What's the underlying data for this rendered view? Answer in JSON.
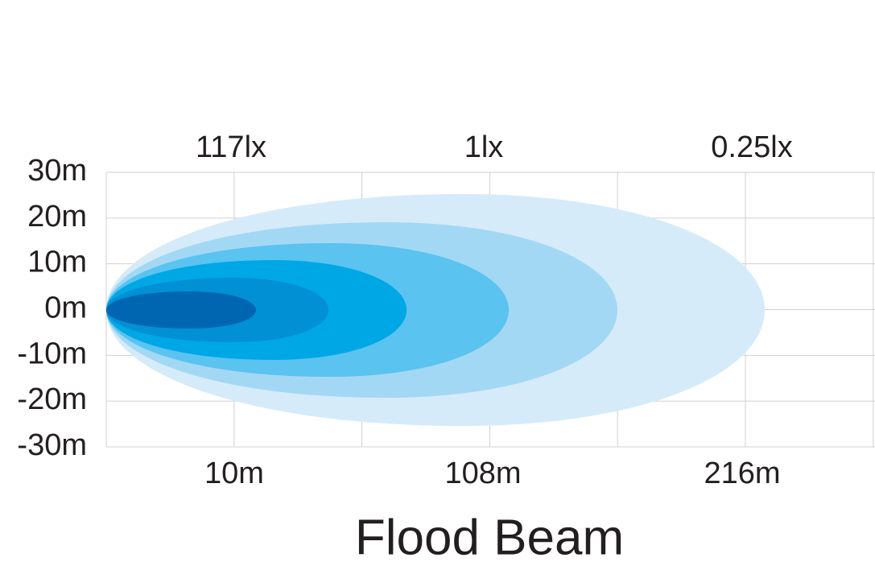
{
  "y_axis": {
    "labels": [
      "30m",
      "20m",
      "10m",
      "0m",
      "-10m",
      "-20m",
      "-30m"
    ]
  },
  "x_axis": {
    "labels": [
      "10m",
      "108m",
      "216m"
    ]
  },
  "lux_labels": [
    "117lx",
    "1lx",
    "0.25lx"
  ],
  "title": "Flood Beam"
}
